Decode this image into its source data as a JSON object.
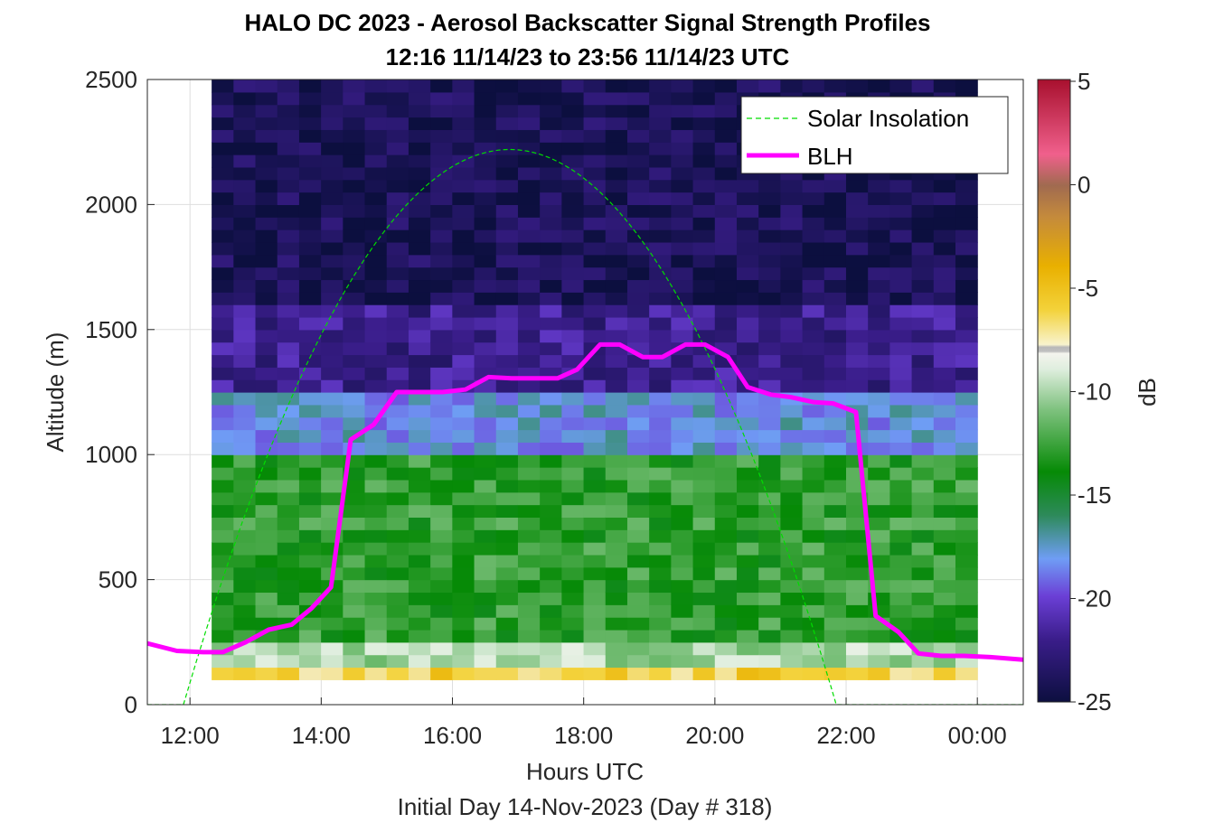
{
  "chart_data": {
    "type": "heatmap",
    "title": "HALO DC 2023 - Aerosol Backscatter Signal Strength Profiles",
    "subtitle": "12:16 11/14/23 to 23:56 11/14/23  UTC",
    "xlabel": "Hours UTC",
    "ylabel": "Altitude (m)",
    "footer": "Initial Day 14-Nov-2023 (Day # 318)",
    "x_ticks": [
      "12:00",
      "14:00",
      "16:00",
      "18:00",
      "20:00",
      "22:00",
      "00:00"
    ],
    "x_tick_hours": [
      12,
      14,
      16,
      18,
      20,
      22,
      24
    ],
    "xlim": [
      11.35,
      24.7
    ],
    "y_ticks": [
      "0",
      "500",
      "1000",
      "1500",
      "2000",
      "2500"
    ],
    "y_tick_values": [
      0,
      500,
      1000,
      1500,
      2000,
      2500
    ],
    "ylim": [
      0,
      2500
    ],
    "grid": true,
    "legend": {
      "location": "top-right",
      "entries": [
        {
          "label": "Solar Insolation",
          "color": "#00dd00",
          "style": "dashed"
        },
        {
          "label": "BLH",
          "color": "#ff00ff",
          "style": "solid"
        }
      ]
    },
    "colorbar": {
      "label": "dB",
      "ticks": [
        "5",
        "0",
        "-5",
        "-10",
        "-15",
        "-20",
        "-25"
      ],
      "tick_values": [
        5,
        0,
        -5,
        -10,
        -15,
        -20,
        -25
      ],
      "range": [
        -25,
        5
      ]
    },
    "heatmap": {
      "time_start": 12.33,
      "time_end": 24.0,
      "time_bins": 35,
      "altitude_start": 100,
      "altitude_end": 2500,
      "altitude_bin": 50,
      "bands": [
        {
          "from": 100,
          "to": 150,
          "dB": -6
        },
        {
          "from": 150,
          "to": 250,
          "dB": -10
        },
        {
          "from": 250,
          "to": 1000,
          "dB": -13
        },
        {
          "from": 1000,
          "to": 1250,
          "dB": -18
        },
        {
          "from": 1250,
          "to": 1600,
          "dB": -22
        },
        {
          "from": 1600,
          "to": 2500,
          "dB": -24
        }
      ]
    },
    "series": [
      {
        "name": "BLH",
        "color": "#ff00ff",
        "x": [
          11.35,
          11.8,
          12.2,
          12.5,
          12.85,
          13.2,
          13.55,
          13.85,
          14.15,
          14.45,
          14.8,
          15.15,
          15.5,
          15.85,
          16.2,
          16.55,
          16.9,
          17.25,
          17.6,
          17.9,
          18.25,
          18.55,
          18.9,
          19.2,
          19.55,
          19.85,
          20.2,
          20.5,
          20.85,
          21.15,
          21.5,
          21.8,
          22.15,
          22.45,
          22.8,
          23.1,
          23.45,
          23.8,
          24.2,
          24.7
        ],
        "y": [
          245,
          215,
          210,
          210,
          250,
          300,
          320,
          385,
          470,
          1060,
          1120,
          1250,
          1250,
          1250,
          1260,
          1310,
          1305,
          1305,
          1305,
          1340,
          1440,
          1440,
          1390,
          1390,
          1440,
          1440,
          1390,
          1270,
          1240,
          1230,
          1210,
          1205,
          1170,
          355,
          290,
          205,
          195,
          195,
          190,
          180
        ]
      },
      {
        "name": "Solar Insolation",
        "color": "#00dd00",
        "sunrise_hour": 11.9,
        "sunset_hour": 21.85,
        "peak_altitude": 2220,
        "peak_hour": 16.87
      }
    ]
  }
}
